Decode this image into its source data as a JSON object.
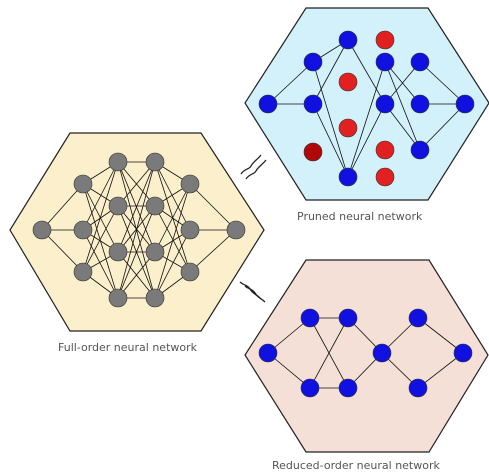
{
  "captions": {
    "full_order": "Full-order neural network",
    "pruned": "Pruned neural network",
    "reduced_order": "Reduced-order neural network"
  },
  "colors": {
    "full_order_panel": "#fbefcc",
    "pruned_panel": "#d2f1fb",
    "reduced_order_panel": "#f4e0d6",
    "full_order_node": "#7a7a7a",
    "active_node": "#1010e0",
    "pruned_node": "#e32020",
    "dark_pruned_node": "#b00808",
    "edge": "#111111"
  },
  "icons": [
    "tilde-connector-icon",
    "tilde-connector-icon"
  ]
}
